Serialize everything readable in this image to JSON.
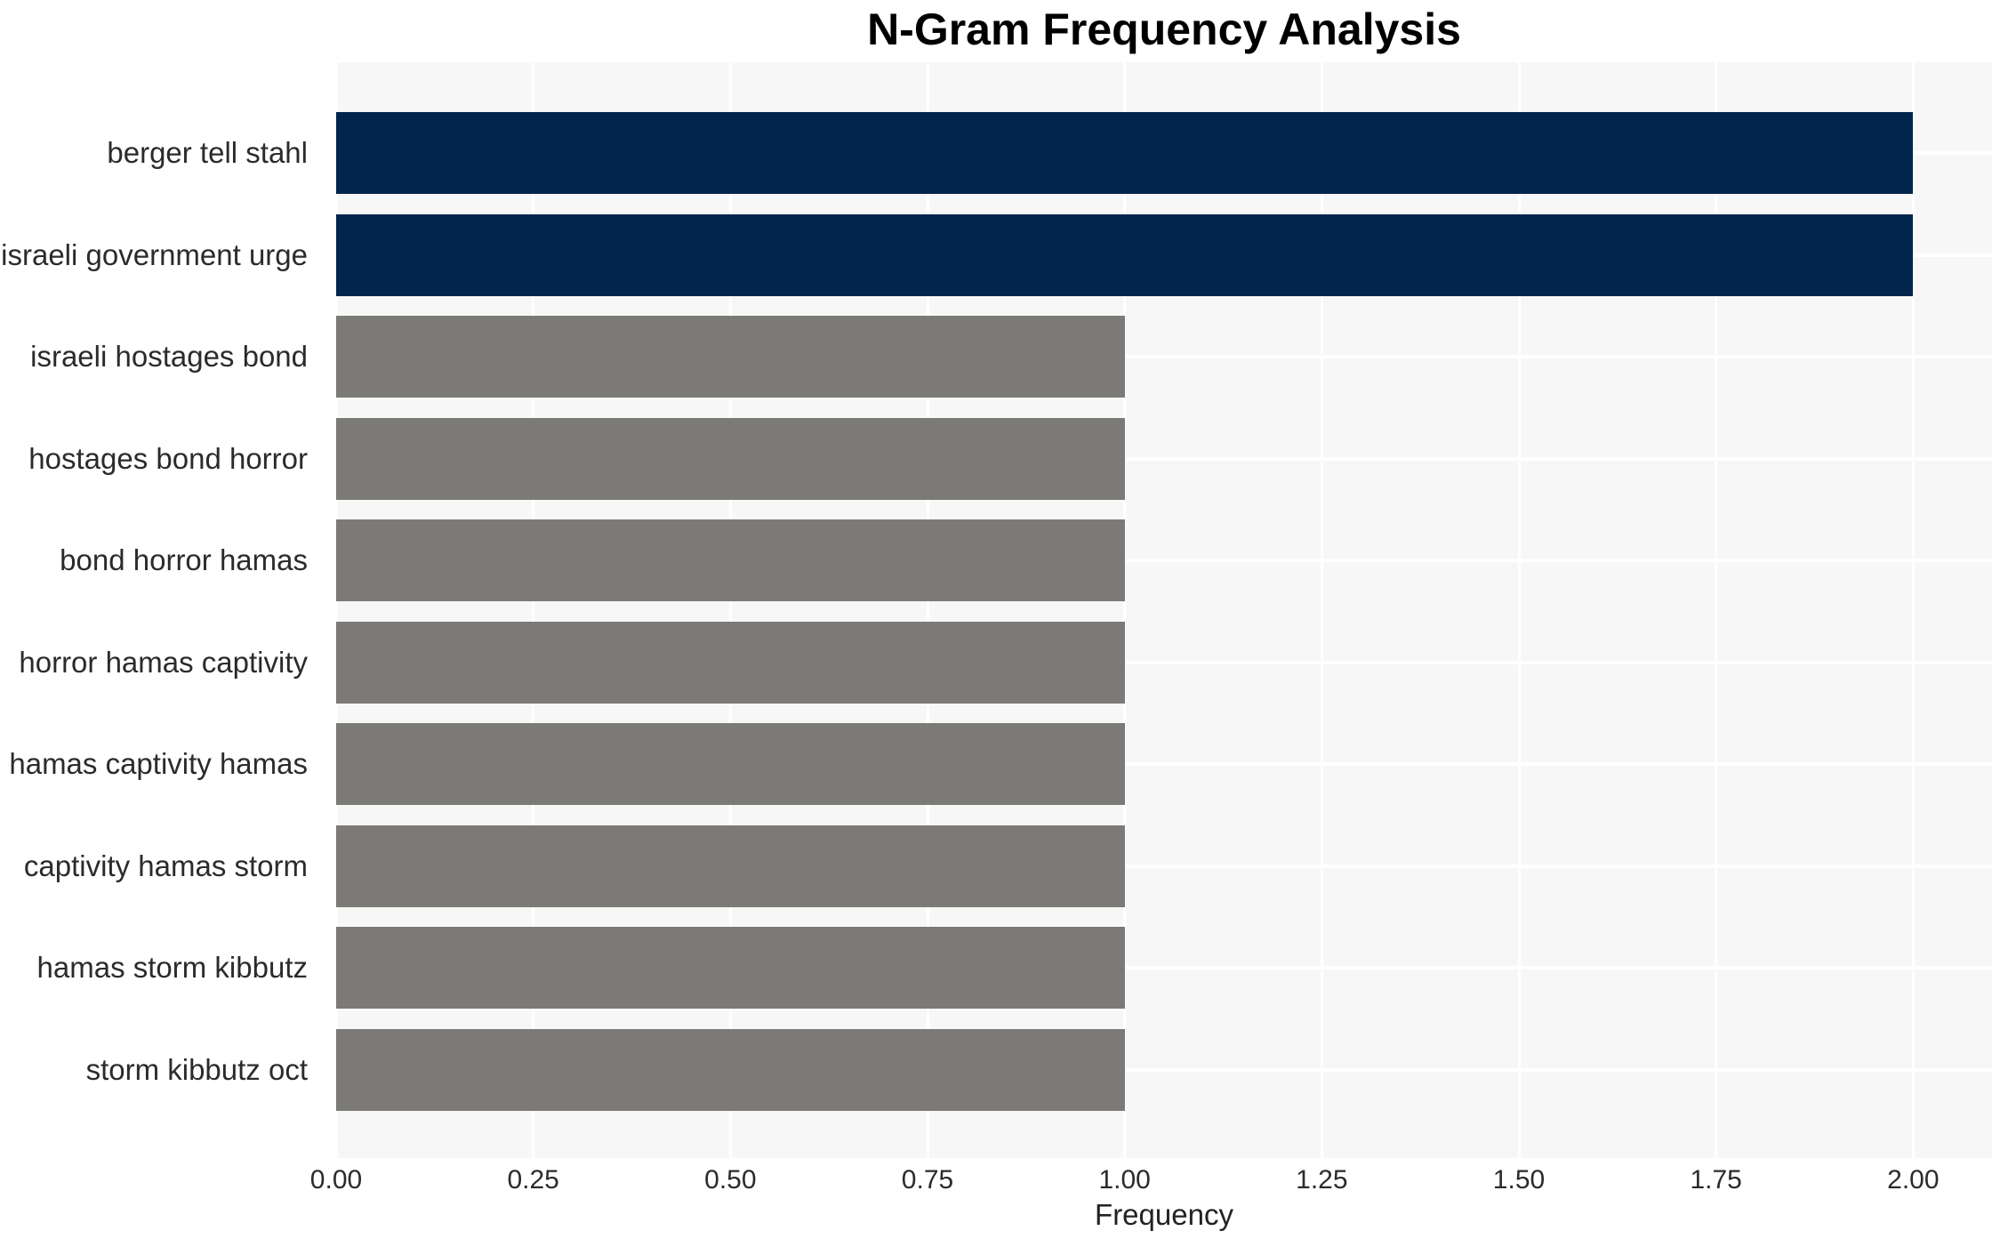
{
  "chart_data": {
    "type": "bar",
    "orientation": "horizontal",
    "title": "N-Gram Frequency Analysis",
    "xlabel": "Frequency",
    "ylabel": "",
    "categories": [
      "berger tell stahl",
      "israeli government urge",
      "israeli hostages bond",
      "hostages bond horror",
      "bond horror hamas",
      "horror hamas captivity",
      "hamas captivity hamas",
      "captivity hamas storm",
      "hamas storm kibbutz",
      "storm kibbutz oct"
    ],
    "values": [
      2,
      2,
      1,
      1,
      1,
      1,
      1,
      1,
      1,
      1
    ],
    "bar_colors": [
      "#02254E",
      "#02254E",
      "#7B7A76",
      "#7B7A76",
      "#7B7A76",
      "#7B7A76",
      "#7B7A76",
      "#7B7A76",
      "#7B7A76",
      "#7B7A76"
    ],
    "xlim": [
      0,
      2.1
    ],
    "xtick_values": [
      0,
      0.25,
      0.5,
      0.75,
      1.0,
      1.25,
      1.5,
      1.75,
      2.0
    ],
    "xtick_labels": [
      "0.00",
      "0.25",
      "0.50",
      "0.75",
      "1.00",
      "1.25",
      "1.50",
      "1.75",
      "2.00"
    ],
    "grid": true,
    "legend": "none",
    "colors": {
      "highlight_bar": "#02254E",
      "default_bar": "#7B7A76",
      "plot_background": "#F7F7F7",
      "gridline": "#FFFFFF",
      "axis_text": "#2B2B2B",
      "title_text": "#000000"
    }
  }
}
